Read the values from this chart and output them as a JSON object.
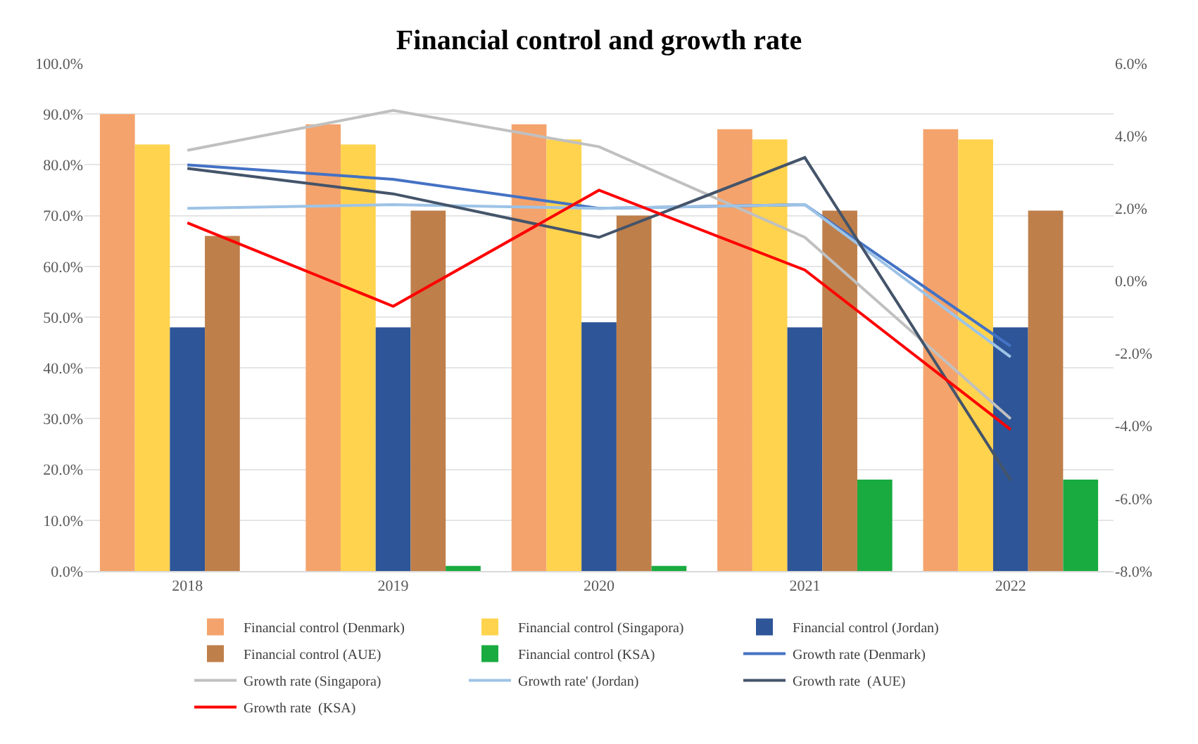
{
  "chart_data": {
    "type": "bar",
    "title": "Financial control and growth rate",
    "categories": [
      "2018",
      "2019",
      "2020",
      "2021",
      "2022"
    ],
    "series": [
      {
        "name": "Financial control (Denmark)",
        "color": "#f4a36c",
        "values": [
          90,
          88,
          88,
          87,
          87
        ]
      },
      {
        "name": "Financial control (Singapora)",
        "color": "#ffd34d",
        "values": [
          84,
          84,
          85,
          85,
          85
        ]
      },
      {
        "name": "Financial control (Jordan)",
        "color": "#2e5597",
        "values": [
          48,
          48,
          49,
          48,
          48
        ]
      },
      {
        "name": "Financial control (AUE)",
        "color": "#bf7f4a",
        "values": [
          66,
          71,
          70,
          71,
          71
        ]
      },
      {
        "name": "Financial control (KSA)",
        "color": "#1aab40",
        "values": [
          null,
          1,
          1,
          18,
          18
        ]
      },
      {
        "name": "Growth rate (Denmark)",
        "type": "line",
        "axis": "y2",
        "color": "#4472c4",
        "values": [
          3.2,
          2.8,
          2.0,
          2.1,
          -1.8
        ]
      },
      {
        "name": "Growth rate (Singapora)",
        "type": "line",
        "axis": "y2",
        "color": "#c0c0c0",
        "values": [
          3.6,
          4.7,
          3.7,
          1.2,
          -3.8
        ]
      },
      {
        "name": "Growth rate' (Jordan)",
        "type": "line",
        "axis": "y2",
        "color": "#9dc3e6",
        "values": [
          2.0,
          2.1,
          2.0,
          2.1,
          -2.1
        ]
      },
      {
        "name": "Growth rate  (AUE)",
        "type": "line",
        "axis": "y2",
        "color": "#44546a",
        "values": [
          3.1,
          2.4,
          1.2,
          3.4,
          -5.5
        ]
      },
      {
        "name": "Growth rate  (KSA)",
        "type": "line",
        "axis": "y2",
        "color": "#ff0000",
        "values": [
          1.6,
          -0.7,
          2.5,
          0.3,
          -4.1
        ]
      }
    ],
    "ylim": [
      0,
      100
    ],
    "yticks": [
      {
        "value": 0,
        "label": "0.0%"
      },
      {
        "value": 10,
        "label": "10.0%"
      },
      {
        "value": 20,
        "label": "20.0%"
      },
      {
        "value": 30,
        "label": "30.0%"
      },
      {
        "value": 40,
        "label": "40.0%"
      },
      {
        "value": 50,
        "label": "50.0%"
      },
      {
        "value": 60,
        "label": "60.0%"
      },
      {
        "value": 70,
        "label": "70.0%"
      },
      {
        "value": 80,
        "label": "80.0%"
      },
      {
        "value": 90,
        "label": "90.0%"
      },
      {
        "value": 100,
        "label": "100.0%"
      }
    ],
    "y2lim": [
      -8,
      6
    ],
    "y2ticks": [
      {
        "value": -8,
        "label": "-8.0%"
      },
      {
        "value": -6,
        "label": "-6.0%"
      },
      {
        "value": -4,
        "label": "-4.0%"
      },
      {
        "value": -2,
        "label": "-2.0%"
      },
      {
        "value": 0,
        "label": "0.0%"
      },
      {
        "value": 2,
        "label": "2.0%"
      },
      {
        "value": 4,
        "label": "4.0%"
      },
      {
        "value": 6,
        "label": "6.0%"
      }
    ],
    "grid": "y",
    "legend": "bottom",
    "marker": "none",
    "line_style": "solid"
  }
}
